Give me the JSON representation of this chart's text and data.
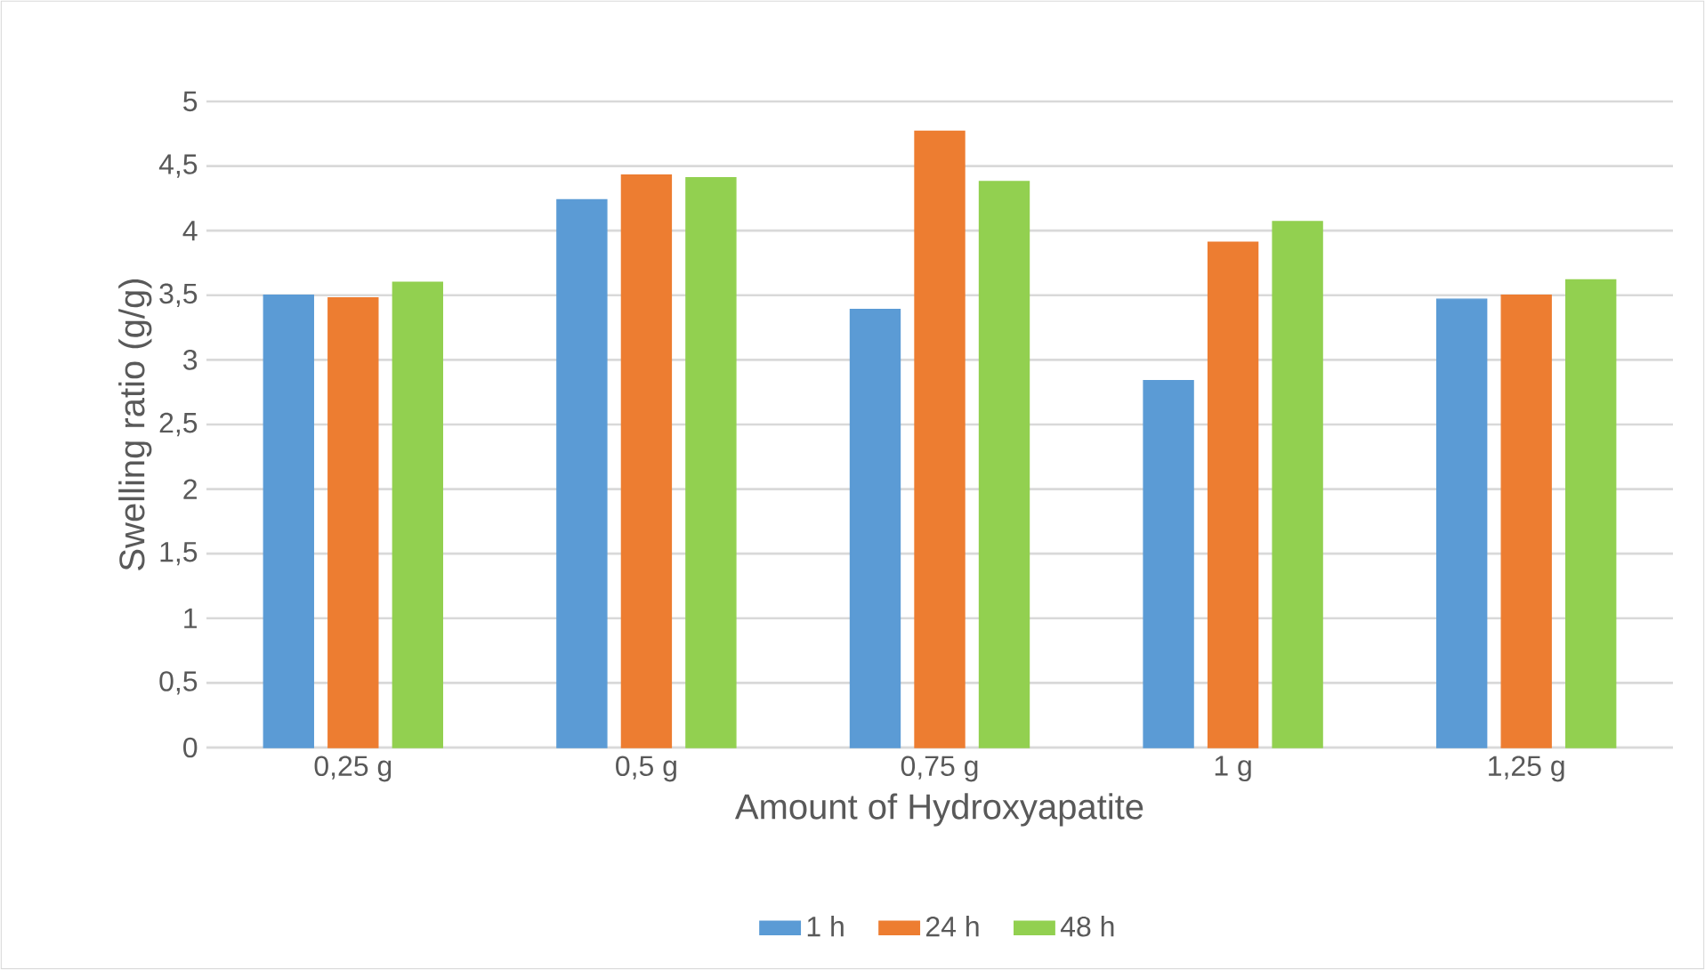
{
  "chart_data": {
    "type": "bar",
    "xlabel": "Amount of Hydroxyapatite",
    "ylabel": "Swelling ratio (g/g)",
    "categories": [
      "0,25 g",
      "0,5 g",
      "0,75 g",
      "1 g",
      "1,25 g"
    ],
    "series": [
      {
        "name": "1 h",
        "color": "#5b9bd5",
        "values": [
          3.5,
          4.24,
          3.39,
          2.84,
          3.47
        ]
      },
      {
        "name": "24 h",
        "color": "#ed7d31",
        "values": [
          3.48,
          4.43,
          4.77,
          3.91,
          3.5
        ]
      },
      {
        "name": "48 h",
        "color": "#92d050",
        "values": [
          3.6,
          4.41,
          4.38,
          4.07,
          3.62
        ]
      }
    ],
    "ylim": [
      0,
      5
    ],
    "yticks": [
      0,
      {
        "value": 0.5,
        "label": "0,5"
      },
      1,
      {
        "value": 1.5,
        "label": "1,5"
      },
      2,
      {
        "value": 2.5,
        "label": "2,5"
      },
      3,
      {
        "value": 3.5,
        "label": "3,5"
      },
      4,
      {
        "value": 4.5,
        "label": "4,5"
      },
      5
    ],
    "grid": "y",
    "legend": "bottom"
  }
}
